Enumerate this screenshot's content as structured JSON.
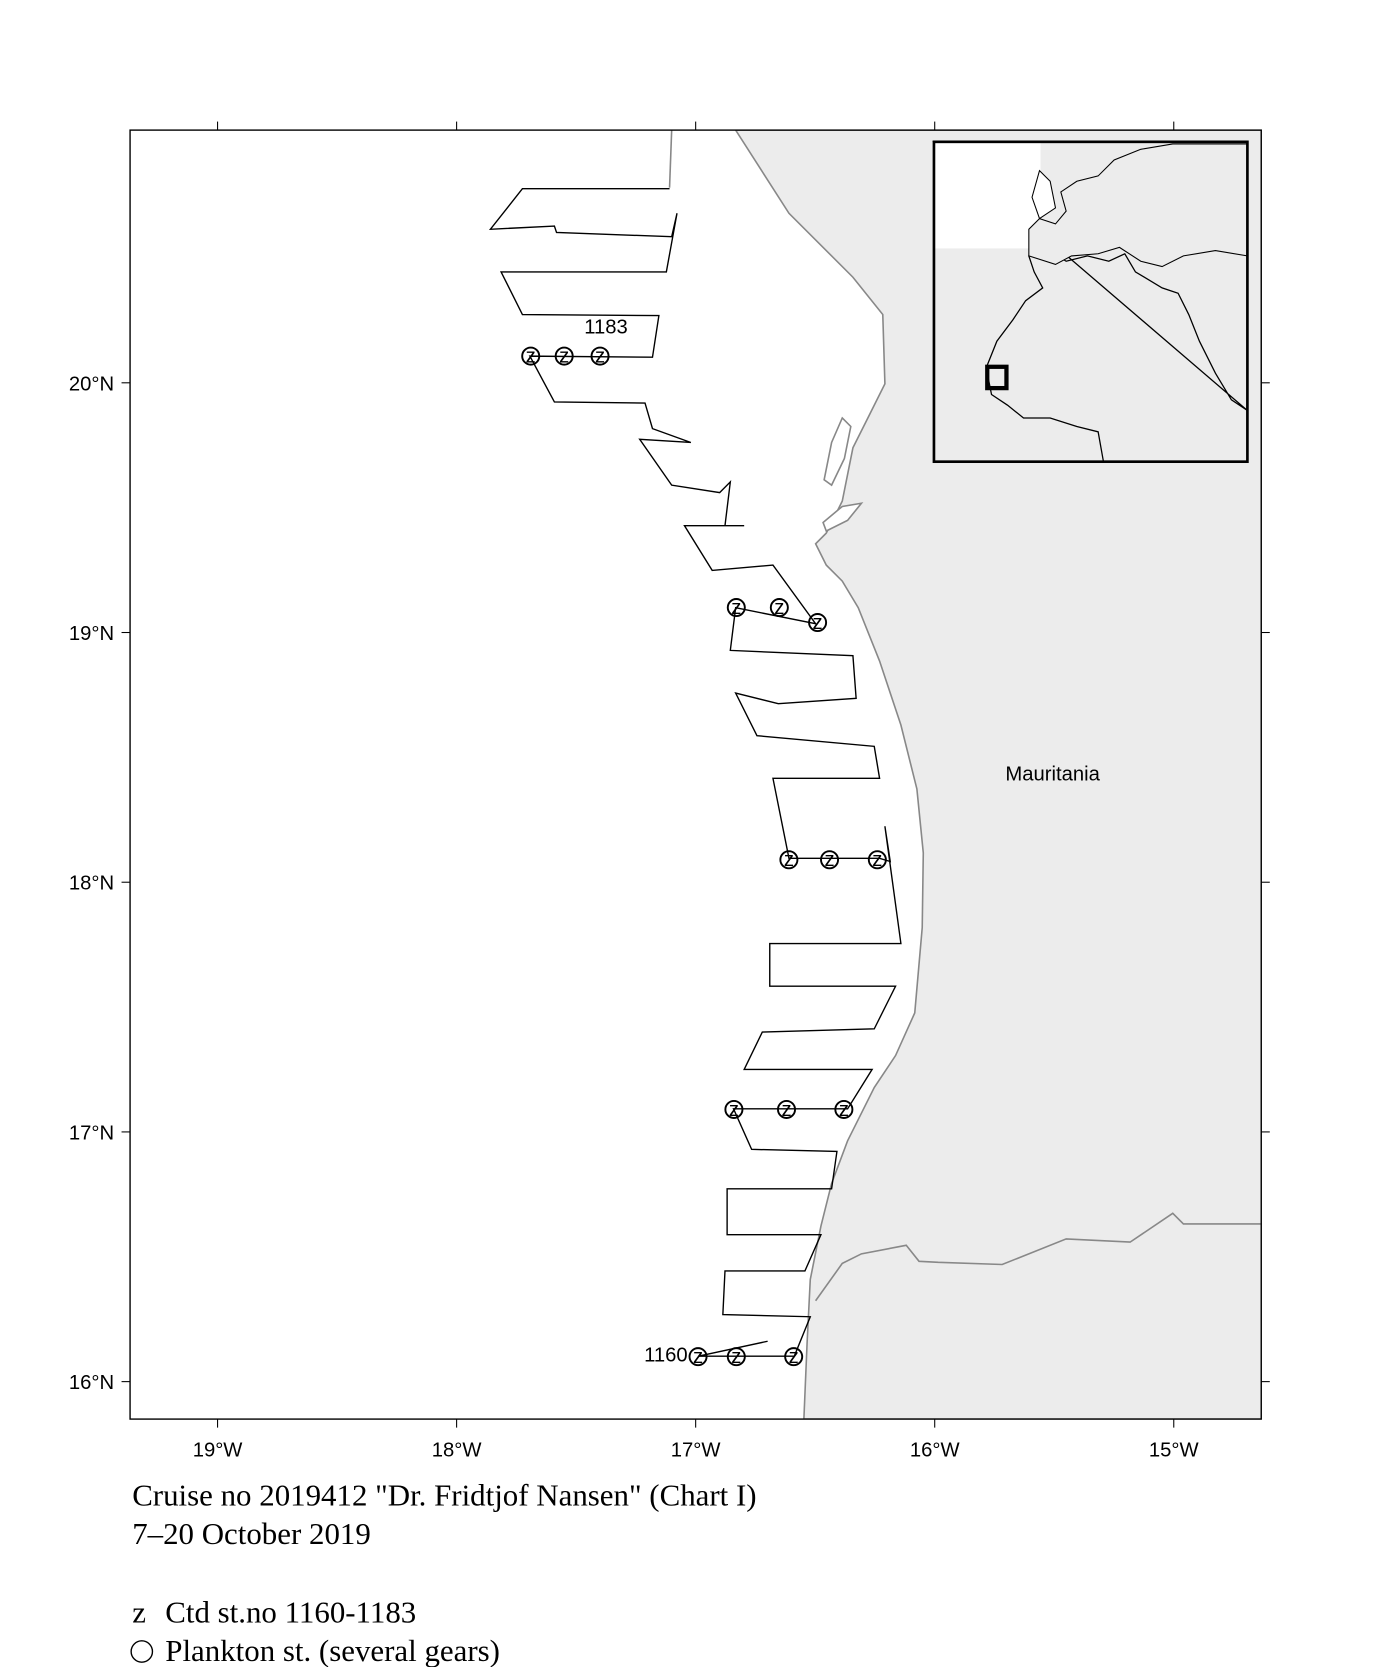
{
  "map": {
    "xlim": [
      -19.366,
      -14.634
    ],
    "ylim": [
      15.85,
      21.012
    ],
    "xticks": [
      {
        "value": -19,
        "label": "19°W"
      },
      {
        "value": -18,
        "label": "18°W"
      },
      {
        "value": -17,
        "label": "17°W"
      },
      {
        "value": -16,
        "label": "16°W"
      },
      {
        "value": -15,
        "label": "15°W"
      }
    ],
    "yticks": [
      {
        "value": 16,
        "label": "16°N"
      },
      {
        "value": 17,
        "label": "17°N"
      },
      {
        "value": 18,
        "label": "18°N"
      },
      {
        "value": 19,
        "label": "19°N"
      },
      {
        "value": 20,
        "label": "20°N"
      }
    ],
    "country_label": "Mauritania",
    "station_labels": [
      "1183",
      "1160"
    ],
    "stations": {
      "lon": [
        -17.69,
        -17.55,
        -17.4,
        -16.83,
        -16.65,
        -16.49,
        -16.61,
        -16.44,
        -16.24,
        -16.84,
        -16.62,
        -16.38,
        -16.99,
        -16.83,
        -16.59
      ],
      "lat": [
        20.107,
        20.107,
        20.107,
        19.1,
        19.1,
        19.04,
        18.09,
        18.09,
        18.09,
        17.09,
        17.09,
        17.09,
        16.1,
        16.1,
        16.1
      ]
    },
    "caption": [
      "Cruise no 2019412  \"Dr. Fridtjof Nansen\" (Chart I)",
      "7–20 October 2019"
    ],
    "legend": [
      {
        "symbol": "z",
        "label": "Ctd st.no 1160-1183"
      },
      {
        "label": "Plankton st. (several gears)"
      }
    ]
  }
}
